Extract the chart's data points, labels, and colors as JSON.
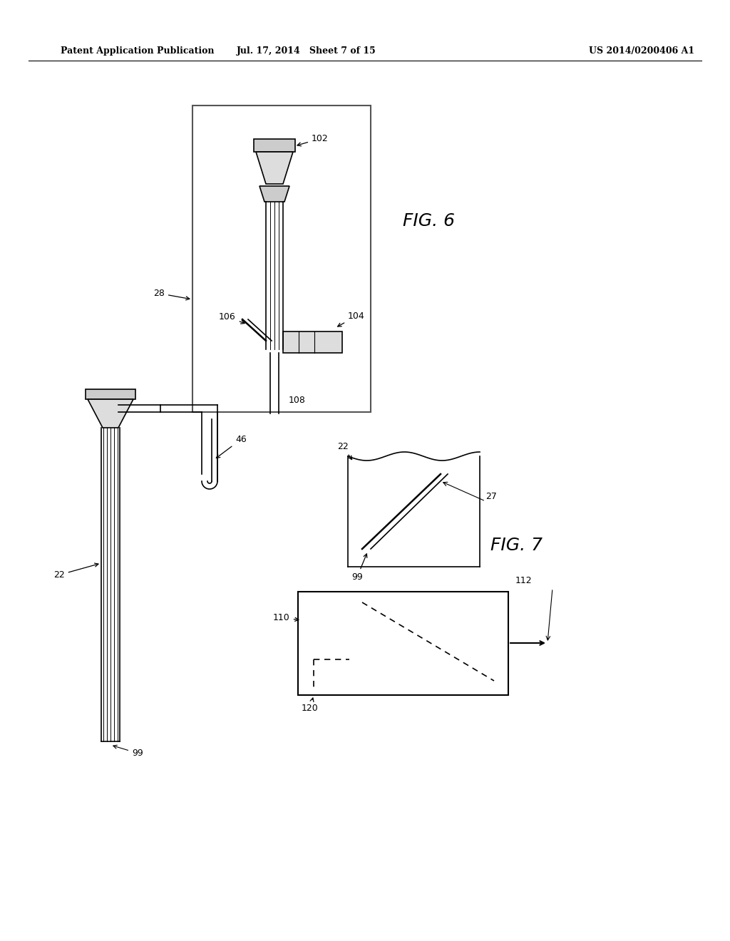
{
  "bg_color": "#ffffff",
  "header_left": "Patent Application Publication",
  "header_mid": "Jul. 17, 2014   Sheet 7 of 15",
  "header_right": "US 2014/0200406 A1",
  "fig6_label": "FIG. 6",
  "fig7_label": "FIG. 7"
}
